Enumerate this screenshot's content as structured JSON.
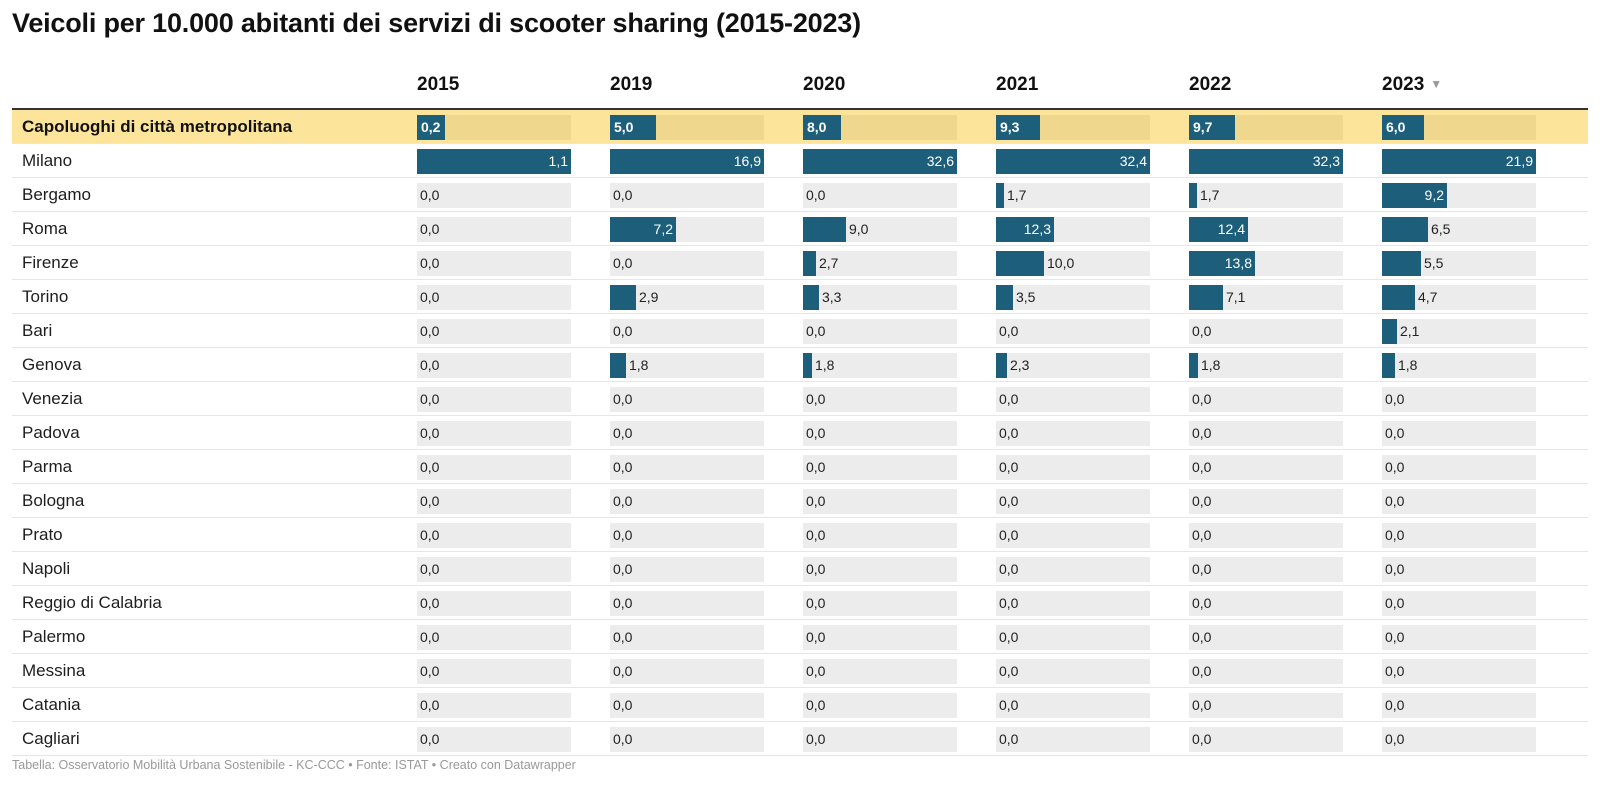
{
  "title": "Veicoli per 10.000 abitanti dei servizi di scooter sharing  (2015-2023)",
  "footer": "Tabella: Osservatorio Mobilità Urbana Sostenibile - KC-CCC • Fonte: ISTAT • Creato con Datawrapper",
  "sort_icon": "sort-descending-icon",
  "colors": {
    "bar": "#1d5f7b",
    "bar_track": "#ececec",
    "highlight_row": "#fce59a",
    "highlight_track": "#efd78d"
  },
  "chart_data": {
    "type": "table",
    "sorted_by": "2023",
    "sort_order": "descending",
    "columns": [
      "2015",
      "2019",
      "2020",
      "2021",
      "2022",
      "2023"
    ],
    "column_max": [
      1.1,
      16.9,
      32.6,
      32.4,
      32.3,
      21.9
    ],
    "rows": [
      {
        "label": "Capoluoghi di città metropolitana",
        "highlight": true,
        "values": [
          0.2,
          5.0,
          8.0,
          9.3,
          9.7,
          6.0
        ],
        "labels": [
          "0,2",
          "5,0",
          "8,0",
          "9,3",
          "9,7",
          "6,0"
        ]
      },
      {
        "label": "Milano",
        "values": [
          1.1,
          16.9,
          32.6,
          32.4,
          32.3,
          21.9
        ],
        "labels": [
          "1,1",
          "16,9",
          "32,6",
          "32,4",
          "32,3",
          "21,9"
        ]
      },
      {
        "label": "Bergamo",
        "values": [
          0.0,
          0.0,
          0.0,
          1.7,
          1.7,
          9.2
        ],
        "labels": [
          "0,0",
          "0,0",
          "0,0",
          "1,7",
          "1,7",
          "9,2"
        ]
      },
      {
        "label": "Roma",
        "values": [
          0.0,
          7.2,
          9.0,
          12.3,
          12.4,
          6.5
        ],
        "labels": [
          "0,0",
          "7,2",
          "9,0",
          "12,3",
          "12,4",
          "6,5"
        ]
      },
      {
        "label": "Firenze",
        "values": [
          0.0,
          0.0,
          2.7,
          10.0,
          13.8,
          5.5
        ],
        "labels": [
          "0,0",
          "0,0",
          "2,7",
          "10,0",
          "13,8",
          "5,5"
        ]
      },
      {
        "label": "Torino",
        "values": [
          0.0,
          2.9,
          3.3,
          3.5,
          7.1,
          4.7
        ],
        "labels": [
          "0,0",
          "2,9",
          "3,3",
          "3,5",
          "7,1",
          "4,7"
        ]
      },
      {
        "label": "Bari",
        "values": [
          0.0,
          0.0,
          0.0,
          0.0,
          0.0,
          2.1
        ],
        "labels": [
          "0,0",
          "0,0",
          "0,0",
          "0,0",
          "0,0",
          "2,1"
        ]
      },
      {
        "label": "Genova",
        "values": [
          0.0,
          1.8,
          1.8,
          2.3,
          1.8,
          1.8
        ],
        "labels": [
          "0,0",
          "1,8",
          "1,8",
          "2,3",
          "1,8",
          "1,8"
        ]
      },
      {
        "label": "Venezia",
        "values": [
          0,
          0,
          0,
          0,
          0,
          0
        ],
        "labels": [
          "0,0",
          "0,0",
          "0,0",
          "0,0",
          "0,0",
          "0,0"
        ]
      },
      {
        "label": "Padova",
        "values": [
          0,
          0,
          0,
          0,
          0,
          0
        ],
        "labels": [
          "0,0",
          "0,0",
          "0,0",
          "0,0",
          "0,0",
          "0,0"
        ]
      },
      {
        "label": "Parma",
        "values": [
          0,
          0,
          0,
          0,
          0,
          0
        ],
        "labels": [
          "0,0",
          "0,0",
          "0,0",
          "0,0",
          "0,0",
          "0,0"
        ]
      },
      {
        "label": "Bologna",
        "values": [
          0,
          0,
          0,
          0,
          0,
          0
        ],
        "labels": [
          "0,0",
          "0,0",
          "0,0",
          "0,0",
          "0,0",
          "0,0"
        ]
      },
      {
        "label": "Prato",
        "values": [
          0,
          0,
          0,
          0,
          0,
          0
        ],
        "labels": [
          "0,0",
          "0,0",
          "0,0",
          "0,0",
          "0,0",
          "0,0"
        ]
      },
      {
        "label": "Napoli",
        "values": [
          0,
          0,
          0,
          0,
          0,
          0
        ],
        "labels": [
          "0,0",
          "0,0",
          "0,0",
          "0,0",
          "0,0",
          "0,0"
        ]
      },
      {
        "label": "Reggio di Calabria",
        "values": [
          0,
          0,
          0,
          0,
          0,
          0
        ],
        "labels": [
          "0,0",
          "0,0",
          "0,0",
          "0,0",
          "0,0",
          "0,0"
        ]
      },
      {
        "label": "Palermo",
        "values": [
          0,
          0,
          0,
          0,
          0,
          0
        ],
        "labels": [
          "0,0",
          "0,0",
          "0,0",
          "0,0",
          "0,0",
          "0,0"
        ]
      },
      {
        "label": "Messina",
        "values": [
          0,
          0,
          0,
          0,
          0,
          0
        ],
        "labels": [
          "0,0",
          "0,0",
          "0,0",
          "0,0",
          "0,0",
          "0,0"
        ]
      },
      {
        "label": "Catania",
        "values": [
          0,
          0,
          0,
          0,
          0,
          0
        ],
        "labels": [
          "0,0",
          "0,0",
          "0,0",
          "0,0",
          "0,0",
          "0,0"
        ]
      },
      {
        "label": "Cagliari",
        "values": [
          0,
          0,
          0,
          0,
          0,
          0
        ],
        "labels": [
          "0,0",
          "0,0",
          "0,0",
          "0,0",
          "0,0",
          "0,0"
        ]
      }
    ]
  }
}
